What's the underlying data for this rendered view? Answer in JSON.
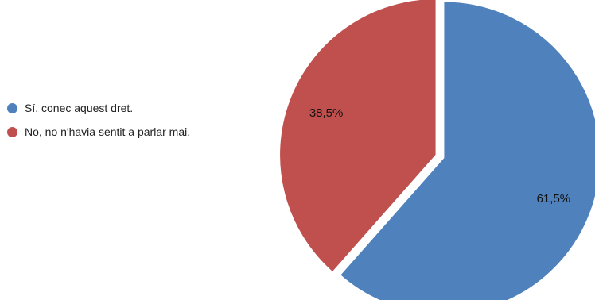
{
  "chart_data": {
    "type": "pie",
    "title": "",
    "legend_position": "left",
    "slices": [
      {
        "label": "Sí, conec aquest dret.",
        "value": 61.5,
        "display": "61,5%",
        "color": "#4f81bd"
      },
      {
        "label": "No, no n'havia sentit a parlar mai.",
        "value": 38.5,
        "display": "38,5%",
        "color": "#c0504d"
      }
    ]
  }
}
